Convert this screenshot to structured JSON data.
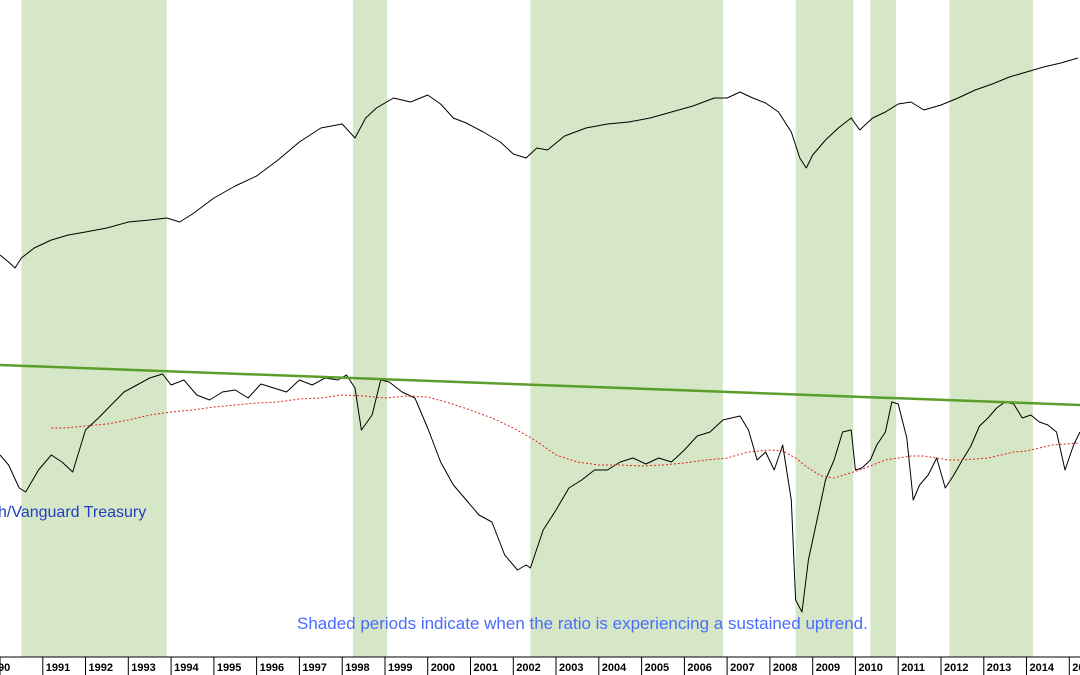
{
  "chart_data": {
    "type": "line",
    "title": "",
    "xlabel": "",
    "ylabel": "",
    "x_range": [
      1990.0,
      2015.25
    ],
    "grid": false,
    "colors": {
      "shade": "#d6e7c7",
      "price_line": "#000000",
      "ratio_line": "#000000",
      "moving_average": "#e3261c",
      "trendline": "#5a9e2c",
      "series_label": "#1f3fbf",
      "note": "#4a6cff"
    },
    "x_tick_labels": [
      "90",
      "1991",
      "1992",
      "1993",
      "1994",
      "1995",
      "1996",
      "1997",
      "1998",
      "1999",
      "2000",
      "2001",
      "2002",
      "2003",
      "2004",
      "2005",
      "2006",
      "2007",
      "2008",
      "2009",
      "2010",
      "2011",
      "2012",
      "2013",
      "2014",
      "20"
    ],
    "shaded_periods": [
      [
        1990.5,
        1993.9
      ],
      [
        1998.25,
        1999.05
      ],
      [
        2002.4,
        2006.9
      ],
      [
        2008.6,
        2009.95
      ],
      [
        2010.35,
        2010.95
      ],
      [
        2012.2,
        2014.15
      ]
    ],
    "series": [
      {
        "role": "price",
        "x": [
          1990.0,
          1990.2,
          1990.35,
          1990.5,
          1990.8,
          1991.2,
          1991.6,
          1992.0,
          1992.5,
          1993.0,
          1993.5,
          1993.9,
          1994.2,
          1994.5,
          1995.0,
          1995.5,
          1996.0,
          1996.5,
          1997.0,
          1997.5,
          1998.0,
          1998.3,
          1998.55,
          1998.8,
          1999.2,
          1999.6,
          2000.0,
          2000.3,
          2000.6,
          2000.9,
          2001.3,
          2001.7,
          2002.0,
          2002.3,
          2002.55,
          2002.8,
          2003.2,
          2003.7,
          2004.2,
          2004.7,
          2005.2,
          2005.7,
          2006.2,
          2006.7,
          2007.0,
          2007.3,
          2007.6,
          2007.9,
          2008.2,
          2008.5,
          2008.7,
          2008.85,
          2009.0,
          2009.3,
          2009.6,
          2009.9,
          2010.1,
          2010.4,
          2010.7,
          2011.0,
          2011.3,
          2011.6,
          2012.0,
          2012.4,
          2012.8,
          2013.2,
          2013.6,
          2014.0,
          2014.4,
          2014.8,
          2015.2
        ],
        "y": [
          255,
          262,
          268,
          258,
          248,
          240,
          235,
          232,
          228,
          222,
          220,
          218,
          222,
          214,
          198,
          186,
          176,
          160,
          142,
          128,
          124,
          138,
          118,
          108,
          98,
          102,
          95,
          104,
          118,
          123,
          132,
          142,
          154,
          158,
          148,
          150,
          136,
          128,
          124,
          122,
          118,
          112,
          106,
          98,
          98,
          92,
          98,
          103,
          112,
          132,
          158,
          168,
          155,
          140,
          128,
          118,
          130,
          118,
          112,
          104,
          102,
          110,
          105,
          98,
          90,
          84,
          77,
          72,
          67,
          63,
          58
        ]
      },
      {
        "role": "ratio",
        "name": "h/Vanguard Treasury",
        "x": [
          1990.0,
          1990.2,
          1990.45,
          1990.6,
          1990.9,
          1991.2,
          1991.45,
          1991.7,
          1992.0,
          1992.3,
          1992.6,
          1992.9,
          1993.2,
          1993.5,
          1993.8,
          1994.0,
          1994.3,
          1994.6,
          1994.9,
          1995.2,
          1995.5,
          1995.8,
          1996.1,
          1996.4,
          1996.7,
          1997.0,
          1997.3,
          1997.6,
          1997.9,
          1998.1,
          1998.3,
          1998.45,
          1998.7,
          1998.9,
          1999.1,
          1999.4,
          1999.7,
          2000.0,
          2000.3,
          2000.6,
          2000.9,
          2001.2,
          2001.5,
          2001.8,
          2002.1,
          2002.3,
          2002.4,
          2002.7,
          2003.0,
          2003.3,
          2003.6,
          2003.9,
          2004.2,
          2004.5,
          2004.8,
          2005.1,
          2005.4,
          2005.7,
          2006.0,
          2006.3,
          2006.6,
          2006.9,
          2007.1,
          2007.3,
          2007.5,
          2007.7,
          2007.9,
          2008.1,
          2008.3,
          2008.5,
          2008.6,
          2008.75,
          2008.9,
          2009.1,
          2009.3,
          2009.5,
          2009.7,
          2009.9,
          2010.0,
          2010.15,
          2010.35,
          2010.5,
          2010.7,
          2010.85,
          2011.0,
          2011.2,
          2011.35,
          2011.5,
          2011.7,
          2011.9,
          2012.1,
          2012.3,
          2012.5,
          2012.7,
          2012.9,
          2013.1,
          2013.3,
          2013.5,
          2013.7,
          2013.9,
          2014.1,
          2014.3,
          2014.5,
          2014.7,
          2014.9,
          2015.1,
          2015.25
        ],
        "y": [
          455,
          465,
          488,
          492,
          470,
          455,
          462,
          472,
          430,
          418,
          405,
          392,
          385,
          378,
          374,
          385,
          380,
          395,
          400,
          392,
          390,
          398,
          384,
          388,
          392,
          380,
          385,
          378,
          380,
          375,
          388,
          430,
          415,
          380,
          382,
          392,
          398,
          428,
          462,
          485,
          500,
          515,
          522,
          555,
          570,
          565,
          568,
          530,
          510,
          488,
          480,
          470,
          470,
          462,
          458,
          464,
          458,
          462,
          450,
          436,
          432,
          420,
          418,
          416,
          430,
          460,
          452,
          470,
          445,
          500,
          600,
          612,
          560,
          520,
          480,
          460,
          432,
          430,
          470,
          468,
          460,
          445,
          432,
          402,
          404,
          438,
          500,
          485,
          475,
          458,
          488,
          475,
          460,
          446,
          426,
          418,
          408,
          402,
          404,
          418,
          415,
          422,
          425,
          432,
          470,
          445,
          432
        ]
      },
      {
        "role": "moving-average",
        "x": [
          1991.2,
          1991.5,
          1992.0,
          1992.5,
          1993.0,
          1993.5,
          1994.0,
          1994.5,
          1995.0,
          1995.5,
          1996.0,
          1996.5,
          1997.0,
          1997.5,
          1998.0,
          1998.5,
          1999.0,
          1999.5,
          2000.0,
          2000.5,
          2001.0,
          2001.5,
          2002.0,
          2002.5,
          2003.0,
          2003.5,
          2004.0,
          2004.5,
          2005.0,
          2005.5,
          2006.0,
          2006.5,
          2007.0,
          2007.5,
          2008.0,
          2008.3,
          2008.6,
          2008.9,
          2009.2,
          2009.5,
          2009.8,
          2010.1,
          2010.4,
          2010.7,
          2011.0,
          2011.3,
          2011.6,
          2011.9,
          2012.2,
          2012.5,
          2012.8,
          2013.1,
          2013.4,
          2013.7,
          2014.0,
          2014.3,
          2014.6,
          2014.9,
          2015.2
        ],
        "y": [
          428,
          428,
          426,
          424,
          420,
          415,
          412,
          410,
          407,
          405,
          403,
          402,
          399,
          398,
          395,
          396,
          398,
          396,
          397,
          403,
          410,
          418,
          428,
          440,
          455,
          462,
          465,
          465,
          466,
          465,
          463,
          460,
          458,
          452,
          450,
          451,
          458,
          468,
          476,
          478,
          474,
          470,
          465,
          460,
          458,
          456,
          456,
          458,
          460,
          460,
          459,
          458,
          455,
          452,
          451,
          448,
          445,
          444,
          443
        ]
      },
      {
        "role": "trendline",
        "x": [
          1990.0,
          2015.25
        ],
        "y": [
          365,
          405
        ]
      }
    ],
    "annotations": {
      "series_label": "h/Vanguard Treasury",
      "note": "Shaded periods indicate when the ratio is experiencing a sustained uptrend."
    }
  }
}
